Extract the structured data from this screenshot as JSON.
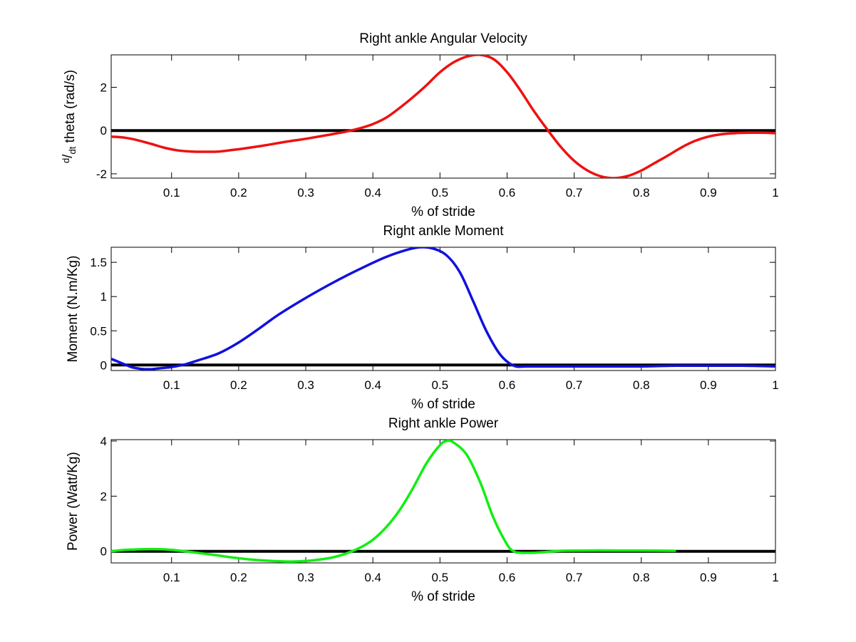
{
  "chart_data": [
    {
      "type": "line",
      "title": "Right ankle Angular Velocity",
      "xlabel": "% of stride",
      "ylabel": {
        "sup": "d",
        "sep": "/",
        "sub": "dt",
        "rest": " theta (rad/s)"
      },
      "xlim": [
        0.01,
        1
      ],
      "ylim": [
        -2.2,
        3.5
      ],
      "xticks": [
        0.1,
        0.2,
        0.3,
        0.4,
        0.5,
        0.6,
        0.7,
        0.8,
        0.9,
        1
      ],
      "xtick_labels": [
        "0.1",
        "0.2",
        "0.3",
        "0.4",
        "0.5",
        "0.6",
        "0.7",
        "0.8",
        "0.9",
        "1"
      ],
      "yticks": [
        -2,
        0,
        2
      ],
      "ytick_labels": [
        "-2",
        "0",
        "2"
      ],
      "color": "#ee1111",
      "zero_line": true,
      "series": [
        {
          "x": [
            0.01,
            0.03,
            0.05,
            0.07,
            0.09,
            0.11,
            0.13,
            0.15,
            0.17,
            0.19,
            0.21,
            0.24,
            0.27,
            0.3,
            0.33,
            0.36,
            0.38,
            0.4,
            0.42,
            0.44,
            0.46,
            0.48,
            0.5,
            0.52,
            0.54,
            0.56,
            0.58,
            0.6,
            0.62,
            0.64,
            0.66,
            0.68,
            0.7,
            0.72,
            0.74,
            0.76,
            0.78,
            0.8,
            0.82,
            0.84,
            0.86,
            0.88,
            0.9,
            0.92,
            0.94,
            0.96,
            0.98,
            1.0
          ],
          "y": [
            -0.28,
            -0.33,
            -0.45,
            -0.62,
            -0.8,
            -0.92,
            -0.97,
            -0.98,
            -0.97,
            -0.9,
            -0.82,
            -0.68,
            -0.52,
            -0.38,
            -0.22,
            -0.05,
            0.1,
            0.3,
            0.6,
            1.05,
            1.55,
            2.1,
            2.7,
            3.15,
            3.42,
            3.5,
            3.3,
            2.7,
            1.85,
            0.9,
            0.05,
            -0.75,
            -1.4,
            -1.85,
            -2.12,
            -2.2,
            -2.1,
            -1.85,
            -1.5,
            -1.15,
            -0.78,
            -0.48,
            -0.28,
            -0.17,
            -0.12,
            -0.1,
            -0.1,
            -0.12
          ]
        }
      ]
    },
    {
      "type": "line",
      "title": "Right ankle Moment",
      "xlabel": "% of stride",
      "ylabel": "Moment (N.m/Kg)",
      "xlim": [
        0.01,
        1
      ],
      "ylim": [
        -0.08,
        1.72
      ],
      "xticks": [
        0.1,
        0.2,
        0.3,
        0.4,
        0.5,
        0.6,
        0.7,
        0.8,
        0.9,
        1
      ],
      "xtick_labels": [
        "0.1",
        "0.2",
        "0.3",
        "0.4",
        "0.5",
        "0.6",
        "0.7",
        "0.8",
        "0.9",
        "1"
      ],
      "yticks": [
        0,
        0.5,
        1,
        1.5
      ],
      "ytick_labels": [
        "0",
        "0.5",
        "1",
        "1.5"
      ],
      "color": "#1111dd",
      "zero_line": true,
      "series": [
        {
          "x": [
            0.01,
            0.02,
            0.03,
            0.04,
            0.05,
            0.06,
            0.07,
            0.08,
            0.09,
            0.1,
            0.12,
            0.14,
            0.17,
            0.2,
            0.23,
            0.26,
            0.3,
            0.34,
            0.38,
            0.42,
            0.45,
            0.47,
            0.49,
            0.51,
            0.53,
            0.55,
            0.57,
            0.59,
            0.61,
            0.63,
            0.66,
            0.7,
            0.75,
            0.8,
            0.85,
            0.9,
            0.95,
            1.0
          ],
          "y": [
            0.09,
            0.05,
            0.01,
            -0.03,
            -0.05,
            -0.06,
            -0.06,
            -0.05,
            -0.04,
            -0.03,
            0.01,
            0.07,
            0.17,
            0.33,
            0.53,
            0.74,
            0.98,
            1.2,
            1.4,
            1.58,
            1.68,
            1.72,
            1.7,
            1.6,
            1.35,
            0.92,
            0.48,
            0.15,
            -0.01,
            -0.02,
            -0.02,
            -0.02,
            -0.02,
            -0.02,
            -0.01,
            -0.01,
            -0.01,
            -0.02
          ]
        }
      ]
    },
    {
      "type": "line",
      "title": "Right ankle Power",
      "xlabel": "% of stride",
      "ylabel": "Power (Watt/Kg)",
      "xlim": [
        0.01,
        1
      ],
      "ylim": [
        -0.42,
        4.05
      ],
      "xticks": [
        0.1,
        0.2,
        0.3,
        0.4,
        0.5,
        0.6,
        0.7,
        0.8,
        0.9,
        1
      ],
      "xtick_labels": [
        "0.1",
        "0.2",
        "0.3",
        "0.4",
        "0.5",
        "0.6",
        "0.7",
        "0.8",
        "0.9",
        "1"
      ],
      "yticks": [
        0,
        2,
        4
      ],
      "ytick_labels": [
        "0",
        "2",
        "4"
      ],
      "color": "#11ee11",
      "zero_line": true,
      "series": [
        {
          "x": [
            0.01,
            0.03,
            0.05,
            0.07,
            0.09,
            0.11,
            0.13,
            0.16,
            0.19,
            0.22,
            0.25,
            0.28,
            0.31,
            0.34,
            0.36,
            0.38,
            0.4,
            0.42,
            0.44,
            0.46,
            0.48,
            0.5,
            0.51,
            0.52,
            0.54,
            0.56,
            0.58,
            0.6,
            0.61,
            0.62,
            0.64,
            0.66,
            0.68,
            0.72,
            0.76,
            0.8,
            0.85
          ],
          "y": [
            0.0,
            0.05,
            0.07,
            0.08,
            0.07,
            0.03,
            -0.03,
            -0.12,
            -0.22,
            -0.3,
            -0.35,
            -0.37,
            -0.33,
            -0.22,
            -0.08,
            0.12,
            0.42,
            0.88,
            1.5,
            2.3,
            3.2,
            3.85,
            4.0,
            3.95,
            3.5,
            2.5,
            1.2,
            0.25,
            0.0,
            -0.05,
            -0.05,
            -0.02,
            0.02,
            0.03,
            0.03,
            0.03,
            0.02
          ]
        }
      ]
    }
  ]
}
